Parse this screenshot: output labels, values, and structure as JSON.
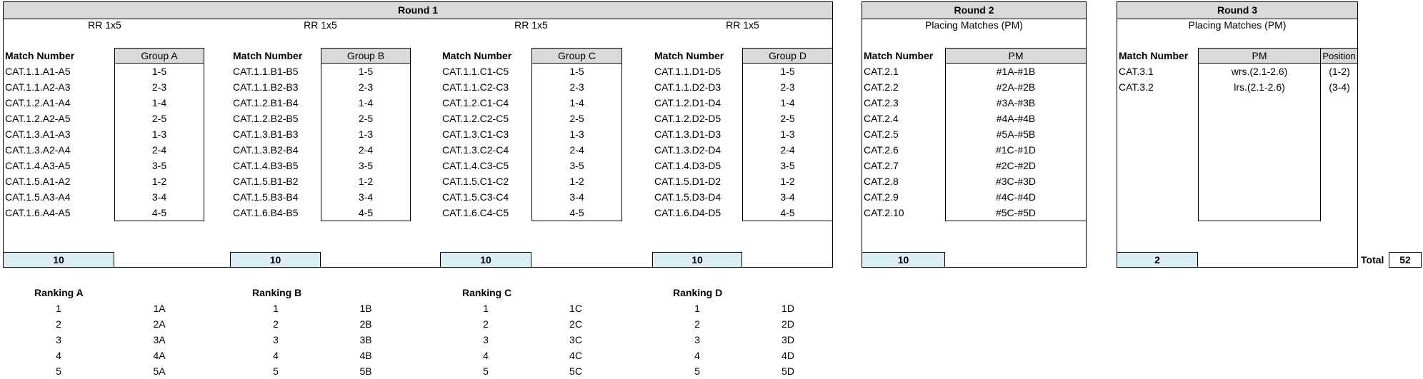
{
  "round1": {
    "title": "Round 1",
    "groups": [
      {
        "subtitle": "RR 1x5",
        "match_label": "Match Number",
        "group_label": "Group A",
        "matches": [
          "CAT.1.1.A1-A5",
          "CAT.1.1.A2-A3",
          "CAT.1.2.A1-A4",
          "CAT.1.2.A2-A5",
          "CAT.1.3.A1-A3",
          "CAT.1.3.A2-A4",
          "CAT.1.4.A3-A5",
          "CAT.1.5.A1-A2",
          "CAT.1.5.A3-A4",
          "CAT.1.6.A4-A5"
        ],
        "pairs": [
          "1-5",
          "2-3",
          "1-4",
          "2-5",
          "1-3",
          "2-4",
          "3-5",
          "1-2",
          "3-4",
          "4-5"
        ],
        "total": "10"
      },
      {
        "subtitle": "RR 1x5",
        "match_label": "Match Number",
        "group_label": "Group B",
        "matches": [
          "CAT.1.1.B1-B5",
          "CAT.1.1.B2-B3",
          "CAT.1.2.B1-B4",
          "CAT.1.2.B2-B5",
          "CAT.1.3.B1-B3",
          "CAT.1.3.B2-B4",
          "CAT.1.4.B3-B5",
          "CAT.1.5.B1-B2",
          "CAT.1.5.B3-B4",
          "CAT.1.6.B4-B5"
        ],
        "pairs": [
          "1-5",
          "2-3",
          "1-4",
          "2-5",
          "1-3",
          "2-4",
          "3-5",
          "1-2",
          "3-4",
          "4-5"
        ],
        "total": "10"
      },
      {
        "subtitle": "RR 1x5",
        "match_label": "Match Number",
        "group_label": "Group C",
        "matches": [
          "CAT.1.1.C1-C5",
          "CAT.1.1.C2-C3",
          "CAT.1.2.C1-C4",
          "CAT.1.2.C2-C5",
          "CAT.1.3.C1-C3",
          "CAT.1.3.C2-C4",
          "CAT.1.4.C3-C5",
          "CAT.1.5.C1-C2",
          "CAT.1.5.C3-C4",
          "CAT.1.6.C4-C5"
        ],
        "pairs": [
          "1-5",
          "2-3",
          "1-4",
          "2-5",
          "1-3",
          "2-4",
          "3-5",
          "1-2",
          "3-4",
          "4-5"
        ],
        "total": "10"
      },
      {
        "subtitle": "RR 1x5",
        "match_label": "Match Number",
        "group_label": "Group D",
        "matches": [
          "CAT.1.1.D1-D5",
          "CAT.1.1.D2-D3",
          "CAT.1.2.D1-D4",
          "CAT.1.2.D2-D5",
          "CAT.1.3.D1-D3",
          "CAT.1.3.D2-D4",
          "CAT.1.4.D3-D5",
          "CAT.1.5.D1-D2",
          "CAT.1.5.D3-D4",
          "CAT.1.6.D4-D5"
        ],
        "pairs": [
          "1-5",
          "2-3",
          "1-4",
          "2-5",
          "1-3",
          "2-4",
          "3-5",
          "1-2",
          "3-4",
          "4-5"
        ],
        "total": "10"
      }
    ]
  },
  "round2": {
    "title": "Round 2",
    "subtitle": "Placing Matches (PM)",
    "match_label": "Match Number",
    "col_label": "PM",
    "matches": [
      "CAT.2.1",
      "CAT.2.2",
      "CAT.2.3",
      "CAT.2.4",
      "CAT.2.5",
      "CAT.2.6",
      "CAT.2.7",
      "CAT.2.8",
      "CAT.2.9",
      "CAT.2.10"
    ],
    "pm": [
      "#1A-#1B",
      "#2A-#2B",
      "#3A-#3B",
      "#4A-#4B",
      "#5A-#5B",
      "#1C-#1D",
      "#2C-#2D",
      "#3C-#3D",
      "#4C-#4D",
      "#5C-#5D"
    ],
    "total": "10"
  },
  "round3": {
    "title": "Round 3",
    "subtitle": "Placing Matches (PM)",
    "match_label": "Match Number",
    "col_label": "PM",
    "pos_label": "Position",
    "matches": [
      "CAT.3.1",
      "CAT.3.2"
    ],
    "pm": [
      "wrs.(2.1-2.6)",
      "lrs.(2.1-2.6)"
    ],
    "positions": [
      "(1-2)",
      "(3-4)"
    ],
    "total": "2"
  },
  "grand_total": {
    "label": "Total",
    "value": "52"
  },
  "rankings": [
    {
      "title": "Ranking A",
      "places": [
        "1",
        "2",
        "3",
        "4",
        "5"
      ],
      "teams": [
        "1A",
        "2A",
        "3A",
        "4A",
        "5A"
      ]
    },
    {
      "title": "Ranking B",
      "places": [
        "1",
        "2",
        "3",
        "4",
        "5"
      ],
      "teams": [
        "1B",
        "2B",
        "3B",
        "4B",
        "5B"
      ]
    },
    {
      "title": "Ranking C",
      "places": [
        "1",
        "2",
        "3",
        "4",
        "5"
      ],
      "teams": [
        "1C",
        "2C",
        "3C",
        "4C",
        "5C"
      ]
    },
    {
      "title": "Ranking D",
      "places": [
        "1",
        "2",
        "3",
        "4",
        "5"
      ],
      "teams": [
        "1D",
        "2D",
        "3D",
        "4D",
        "5D"
      ]
    }
  ]
}
